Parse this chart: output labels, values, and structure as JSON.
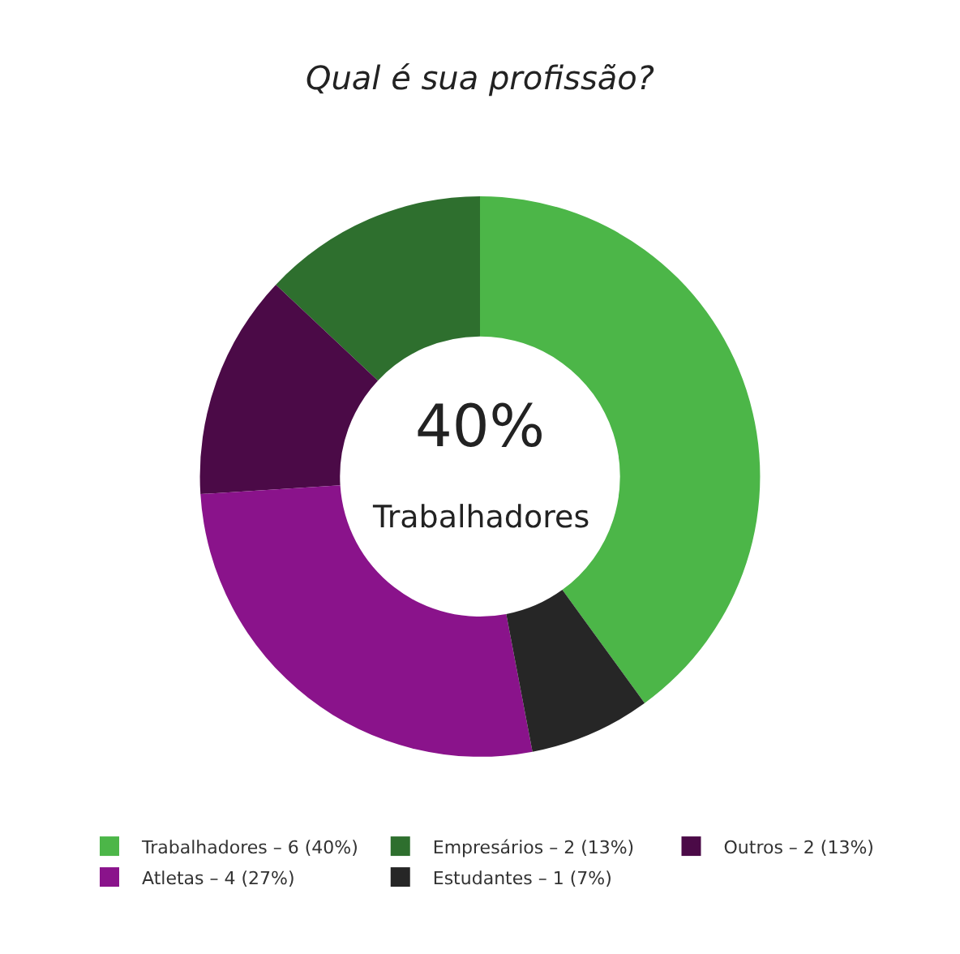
{
  "chart_data": {
    "type": "donut",
    "title": "Qual é sua profissão?",
    "categories": [
      "Trabalhadores – 6 (40%)",
      "Empresários – 2 (13%)",
      "Outros – 2 (13%)",
      "Atletas – 4 (27%)",
      "Estudantes – 1 (7%)"
    ],
    "values": [
      40,
      13,
      13,
      27,
      7
    ],
    "colors": [
      "#4cb648",
      "#2e6f2e",
      "#4b0a47",
      "#8a138b",
      "#262626"
    ],
    "annotations": [
      "40%",
      "Trabalhadores"
    ],
    "legend": "bottom"
  }
}
